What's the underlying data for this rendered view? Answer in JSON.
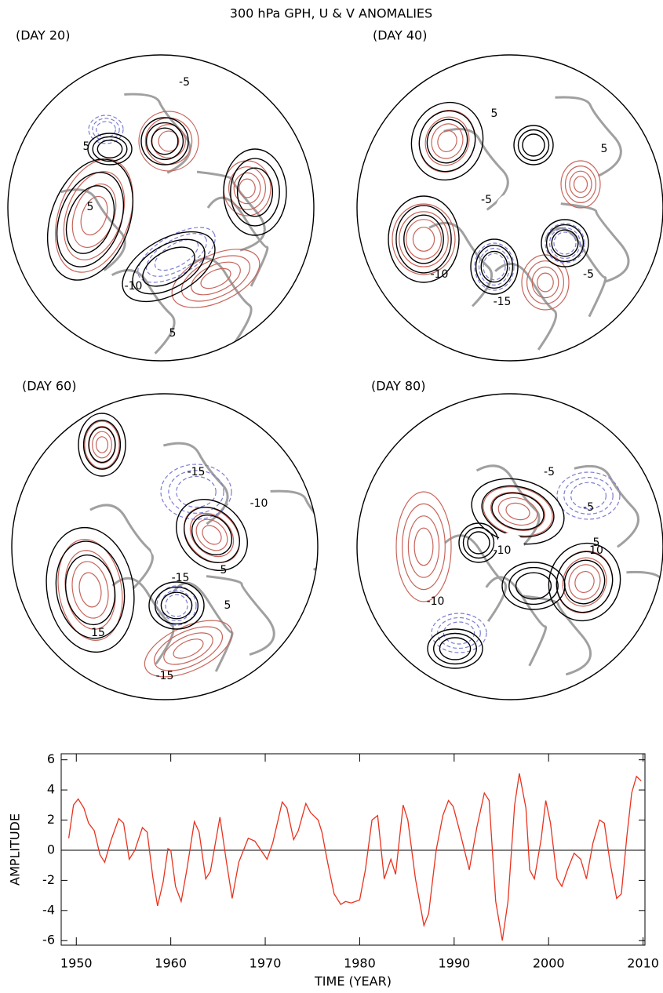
{
  "title": "300 hPa GPH, U & V ANOMALIES",
  "panels": [
    {
      "label": "(DAY 20)",
      "contour_labels": [
        "5",
        "-5",
        "-10",
        "5",
        "5"
      ]
    },
    {
      "label": "(DAY 40)",
      "contour_labels": [
        "5",
        "5",
        "-10",
        "-15",
        "-5",
        "-5"
      ]
    },
    {
      "label": "(DAY 60)",
      "contour_labels": [
        "-15",
        "-10",
        "5",
        "5",
        "-15",
        "15",
        "-15"
      ]
    },
    {
      "label": "(DAY 80)",
      "contour_labels": [
        "-5",
        "-5",
        "5",
        "-10",
        "10",
        "-10"
      ]
    }
  ],
  "chart_data": {
    "type": "line",
    "xlabel": "TIME (YEAR)",
    "ylabel": "AMPLITUDE",
    "xlim": [
      1948.4,
      2010.2
    ],
    "ylim": [
      -6.3,
      6.4
    ],
    "xticks": [
      1950,
      1960,
      1970,
      1980,
      1990,
      2000,
      2010
    ],
    "yticks": [
      -6,
      -4,
      -2,
      0,
      2,
      4,
      6
    ],
    "reference_line": 0,
    "series": [
      {
        "color": "#e8321e",
        "x": [
          1949.2,
          1949.7,
          1950.2,
          1950.8,
          1951.3,
          1951.9,
          1952.5,
          1953.0,
          1953.7,
          1954.5,
          1955.0,
          1955.6,
          1956.2,
          1957.0,
          1957.5,
          1958.1,
          1958.6,
          1959.2,
          1959.7,
          1960.0,
          1960.5,
          1961.1,
          1961.7,
          1962.5,
          1963.0,
          1963.7,
          1964.2,
          1965.2,
          1965.9,
          1966.5,
          1967.2,
          1968.2,
          1968.9,
          1970.2,
          1970.8,
          1971.8,
          1972.3,
          1973.0,
          1973.5,
          1974.3,
          1974.8,
          1975.6,
          1976.0,
          1976.6,
          1977.3,
          1978.0,
          1978.5,
          1979.1,
          1980.0,
          1980.6,
          1981.3,
          1981.9,
          1982.6,
          1983.3,
          1983.8,
          1984.6,
          1985.1,
          1985.9,
          1986.8,
          1987.3,
          1988.1,
          1988.8,
          1989.4,
          1989.9,
          1990.7,
          1991.6,
          1992.4,
          1993.2,
          1993.7,
          1994.4,
          1995.1,
          1995.7,
          1996.4,
          1996.9,
          1997.6,
          1998.0,
          1998.5,
          1999.2,
          1999.7,
          2000.2,
          2000.9,
          2001.4,
          2002.0,
          2002.7,
          2003.4,
          2004.0,
          2004.7,
          2005.4,
          2005.9,
          2006.5,
          2007.2,
          2007.7,
          2008.3,
          2008.8,
          2009.3,
          2009.8
        ],
        "values": [
          0.8,
          3.0,
          3.4,
          2.8,
          1.8,
          1.3,
          -0.3,
          -0.8,
          0.7,
          2.1,
          1.8,
          -0.6,
          0.0,
          1.5,
          1.2,
          -1.8,
          -3.7,
          -2.1,
          0.1,
          0.0,
          -2.4,
          -3.4,
          -1.3,
          1.9,
          1.2,
          -1.9,
          -1.4,
          2.2,
          -0.8,
          -3.2,
          -0.8,
          0.8,
          0.6,
          -0.6,
          0.5,
          3.2,
          2.8,
          0.7,
          1.3,
          3.1,
          2.5,
          2.0,
          1.2,
          -0.8,
          -2.9,
          -3.6,
          -3.4,
          -3.5,
          -3.3,
          -1.3,
          2.0,
          2.3,
          -1.9,
          -0.6,
          -1.6,
          3.0,
          2.0,
          -1.9,
          -5.0,
          -4.2,
          0.0,
          2.3,
          3.3,
          2.9,
          1.0,
          -1.3,
          1.5,
          3.8,
          3.3,
          -3.4,
          -6.0,
          -3.4,
          3.0,
          5.1,
          2.8,
          -1.3,
          -1.9,
          0.7,
          3.3,
          1.8,
          -1.9,
          -2.4,
          -1.3,
          -0.2,
          -0.6,
          -1.9,
          0.5,
          2.0,
          1.8,
          -0.8,
          -3.2,
          -2.9,
          1.0,
          3.8,
          4.9,
          4.6
        ]
      }
    ]
  }
}
